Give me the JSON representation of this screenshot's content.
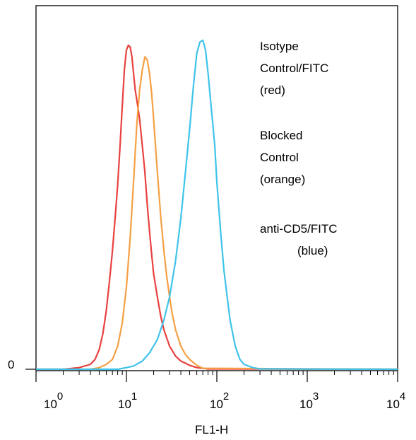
{
  "chart_data": {
    "type": "line",
    "title": "",
    "xlabel": "FL1-H",
    "ylabel": "",
    "x_scale": "log",
    "xlim": [
      1,
      10000
    ],
    "ylim": [
      0,
      100
    ],
    "grid": false,
    "y_tick_labels": [
      "0"
    ],
    "x_tick_labels": [
      {
        "base": "10",
        "exp": "0"
      },
      {
        "base": "10",
        "exp": "1"
      },
      {
        "base": "10",
        "exp": "2"
      },
      {
        "base": "10",
        "exp": "3"
      },
      {
        "base": "10",
        "exp": "4"
      }
    ],
    "legend_placement": "top-right",
    "legend": [
      {
        "lines": [
          "Isotype",
          "Control/FITC",
          "(red)"
        ],
        "color": "#e8413f"
      },
      {
        "lines": [
          "Blocked",
          "Control",
          "(orange)"
        ],
        "color": "#f5a043"
      },
      {
        "lines": [
          "anti-CD5/FITC",
          "(blue)"
        ],
        "color": "#3ec3ea"
      }
    ],
    "series": [
      {
        "color": "#e8413f",
        "x": [
          1,
          2,
          3,
          4,
          4.5,
          5,
          5.5,
          6,
          6.5,
          7,
          7.5,
          8,
          8.5,
          9,
          9.5,
          10,
          10.5,
          11,
          11.5,
          12,
          12.5,
          13,
          13.5,
          14,
          15,
          16,
          17,
          18,
          19,
          20,
          22,
          24,
          26,
          30,
          35,
          40,
          50,
          60,
          80,
          10000
        ],
        "y": [
          0,
          0,
          0.5,
          1.5,
          3,
          6,
          11,
          18,
          27,
          36,
          46,
          56,
          68,
          80,
          91,
          97,
          98.5,
          98,
          95,
          90,
          85,
          82,
          79,
          76,
          68,
          60,
          50,
          42,
          35,
          29,
          22,
          16,
          12,
          7,
          4,
          2.5,
          1.2,
          0.5,
          0.1,
          0
        ]
      },
      {
        "color": "#f5a043",
        "x": [
          1,
          4,
          5,
          6,
          7,
          8,
          9,
          10,
          11,
          12,
          13,
          14,
          15,
          16,
          17,
          18,
          19,
          20,
          22,
          24,
          26,
          28,
          30,
          32,
          35,
          40,
          45,
          50,
          60,
          70,
          10000
        ],
        "y": [
          0,
          0,
          0.5,
          1.5,
          3,
          7,
          14,
          25,
          40,
          57,
          74,
          85,
          91,
          95,
          94,
          90,
          84,
          76,
          60,
          46,
          36,
          28,
          22,
          17,
          12,
          7,
          4.5,
          3,
          1.2,
          0.3,
          0
        ]
      },
      {
        "color": "#3ec3ea",
        "x": [
          1,
          8,
          10,
          12,
          15,
          18,
          22,
          26,
          30,
          35,
          40,
          45,
          50,
          55,
          60,
          65,
          70,
          75,
          80,
          85,
          90,
          95,
          100,
          110,
          120,
          140,
          160,
          180,
          200,
          250,
          300,
          10000
        ],
        "y": [
          0,
          0,
          0.5,
          1,
          2.5,
          5,
          9,
          15,
          22,
          33,
          46,
          60,
          73,
          86,
          96,
          99.5,
          100,
          97,
          90,
          82,
          75,
          68,
          57,
          42,
          30,
          15,
          7,
          3,
          1.5,
          0.5,
          0.1,
          0
        ]
      }
    ]
  }
}
